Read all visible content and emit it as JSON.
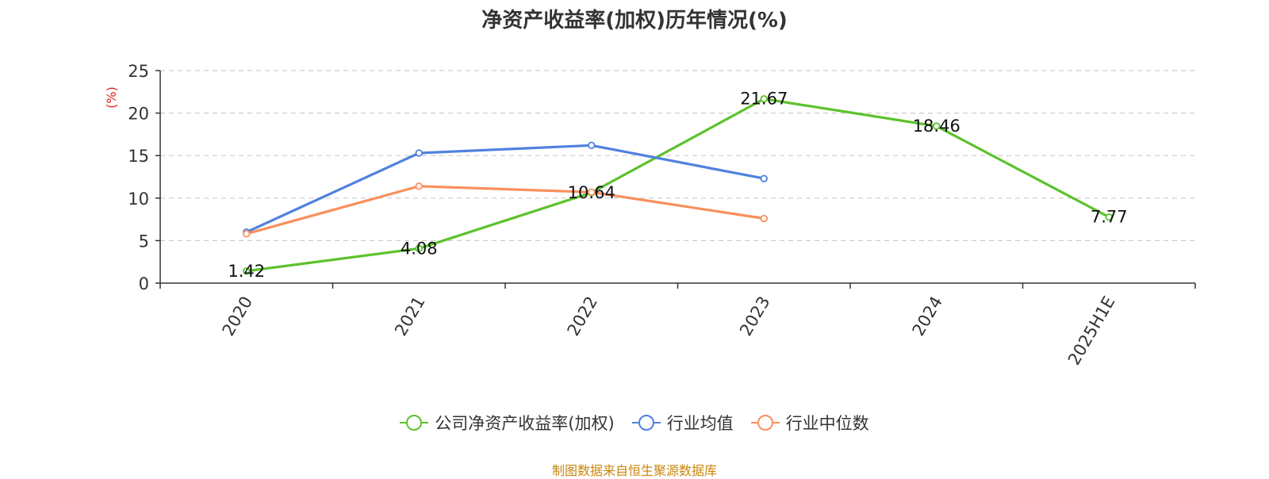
{
  "chart_data": {
    "type": "line",
    "title": "净资产收益率(加权)历年情况(%)",
    "ylabel": "(%)",
    "ylim": [
      0,
      25
    ],
    "yticks": [
      0,
      5,
      10,
      15,
      20,
      25
    ],
    "categories": [
      "2020",
      "2021",
      "2022",
      "2023",
      "2024",
      "2025H1E"
    ],
    "grid": true,
    "legend_position": "bottom",
    "series": [
      {
        "name": "公司净资产收益率(加权)",
        "color": "#5cc22b",
        "values": [
          1.42,
          4.08,
          10.64,
          21.67,
          18.46,
          7.77
        ],
        "labels": [
          "1.42",
          "4.08",
          "10.64",
          "21.67",
          "18.46",
          "7.77"
        ]
      },
      {
        "name": "行业均值",
        "color": "#4f81e0",
        "values": [
          6.0,
          15.3,
          16.2,
          12.3,
          null,
          null
        ]
      },
      {
        "name": "行业中位数",
        "color": "#fa8f5c",
        "values": [
          5.8,
          11.4,
          10.7,
          7.6,
          null,
          null
        ]
      }
    ]
  },
  "footer": {
    "source": "制图数据来自恒生聚源数据库"
  }
}
